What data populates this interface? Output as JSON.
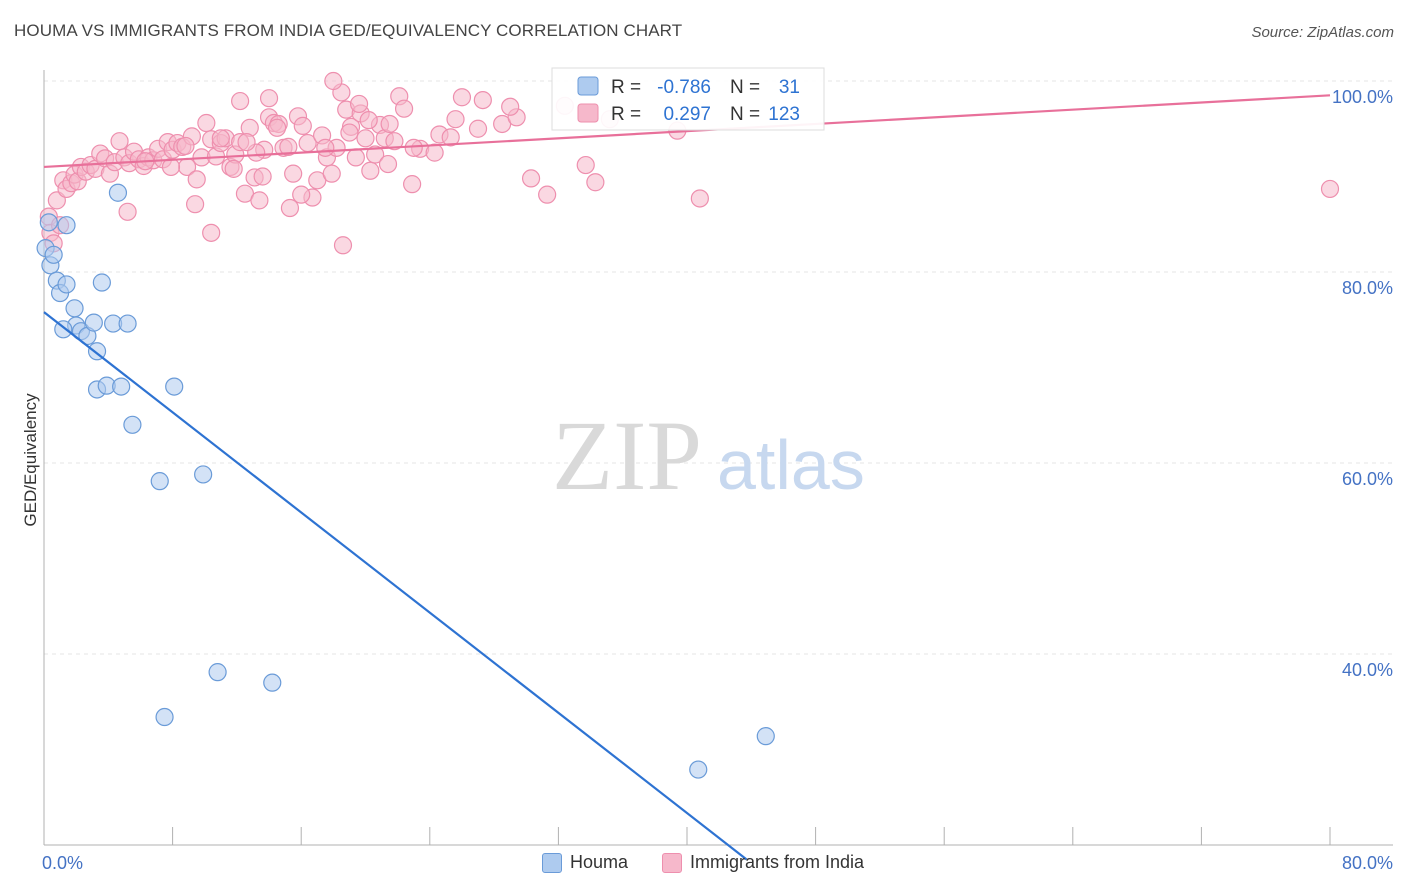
{
  "header": {
    "title": "HOUMA VS IMMIGRANTS FROM INDIA GED/EQUIVALENCY CORRELATION CHART",
    "source": "Source: ZipAtlas.com"
  },
  "watermark": {
    "zip": "ZIP",
    "atlas": "atlas"
  },
  "colors": {
    "houma_fill": "#aecbef",
    "houma_stroke": "#6a9bd8",
    "houma_line": "#2e73d2",
    "india_fill": "#f6b8cb",
    "india_stroke": "#ee8fae",
    "india_line": "#e8709a",
    "tick_text": "#4472c4",
    "grid": "#e4e4e4"
  },
  "stats": {
    "r_label": "R =",
    "n_label": "N =",
    "houma": {
      "r": "-0.786",
      "n": "31"
    },
    "india": {
      "r": "0.297",
      "n": "123"
    }
  },
  "chart_data": {
    "type": "scatter",
    "title": "HOUMA VS IMMIGRANTS FROM INDIA GED/EQUIVALENCY CORRELATION CHART",
    "xlabel": "",
    "ylabel": "GED/Equivalency",
    "xlim": [
      0,
      80
    ],
    "ylim": [
      18.5,
      102
    ],
    "x_tick_labels": [
      {
        "value": 0,
        "label": "0.0%"
      },
      {
        "value": 80,
        "label": "80.0%"
      }
    ],
    "y_tick_labels": [
      {
        "value": 100,
        "label": "100.0%"
      },
      {
        "value": 80,
        "label": "80.0%"
      },
      {
        "value": 60,
        "label": "60.0%"
      },
      {
        "value": 40,
        "label": "40.0%"
      }
    ],
    "y_gridlines": [
      100,
      80,
      60,
      40
    ],
    "legend_position": "top-center",
    "series": [
      {
        "name": "Houma",
        "trendline": {
          "x0": 0,
          "y0": 75.8,
          "x1": 43.7,
          "y1": 18.5
        },
        "points": [
          [
            0.1,
            82.5
          ],
          [
            0.4,
            80.7
          ],
          [
            0.6,
            81.8
          ],
          [
            0.8,
            79.1
          ],
          [
            1.0,
            77.8
          ],
          [
            1.4,
            78.7
          ],
          [
            1.4,
            84.9
          ],
          [
            1.9,
            76.2
          ],
          [
            2.0,
            74.4
          ],
          [
            1.2,
            74.0
          ],
          [
            2.3,
            73.8
          ],
          [
            2.7,
            73.3
          ],
          [
            3.1,
            74.7
          ],
          [
            3.6,
            78.9
          ],
          [
            4.3,
            74.6
          ],
          [
            5.2,
            74.6
          ],
          [
            4.6,
            88.3
          ],
          [
            3.3,
            71.7
          ],
          [
            3.3,
            67.7
          ],
          [
            3.9,
            68.1
          ],
          [
            4.8,
            68.0
          ],
          [
            8.1,
            68.0
          ],
          [
            5.5,
            64.0
          ],
          [
            7.2,
            58.1
          ],
          [
            9.9,
            58.8
          ],
          [
            10.8,
            38.1
          ],
          [
            14.2,
            37.0
          ],
          [
            7.5,
            33.4
          ],
          [
            40.7,
            27.9
          ],
          [
            44.9,
            31.4
          ],
          [
            0.3,
            85.2
          ]
        ]
      },
      {
        "name": "Immigrants from India",
        "trendline": {
          "x0": 0,
          "y0": 91.0,
          "x1": 80,
          "y1": 98.5
        },
        "points": [
          [
            0.3,
            85.8
          ],
          [
            0.4,
            84.1
          ],
          [
            0.6,
            83.0
          ],
          [
            0.8,
            87.5
          ],
          [
            1.0,
            84.9
          ],
          [
            1.2,
            89.6
          ],
          [
            1.4,
            88.7
          ],
          [
            1.7,
            89.3
          ],
          [
            1.9,
            90.2
          ],
          [
            2.1,
            89.5
          ],
          [
            2.3,
            91.0
          ],
          [
            2.6,
            90.5
          ],
          [
            2.9,
            91.2
          ],
          [
            3.2,
            90.8
          ],
          [
            3.5,
            92.4
          ],
          [
            3.8,
            91.9
          ],
          [
            4.1,
            90.3
          ],
          [
            4.4,
            91.5
          ],
          [
            4.7,
            93.7
          ],
          [
            5.0,
            92.0
          ],
          [
            5.3,
            91.4
          ],
          [
            5.6,
            92.6
          ],
          [
            5.9,
            91.8
          ],
          [
            6.2,
            91.1
          ],
          [
            6.5,
            92.0
          ],
          [
            6.8,
            91.7
          ],
          [
            7.1,
            92.9
          ],
          [
            7.4,
            91.8
          ],
          [
            7.7,
            93.6
          ],
          [
            8.0,
            92.8
          ],
          [
            8.3,
            93.5
          ],
          [
            8.6,
            93.1
          ],
          [
            8.9,
            91.0
          ],
          [
            9.2,
            94.2
          ],
          [
            9.5,
            89.7
          ],
          [
            9.8,
            92.0
          ],
          [
            10.1,
            95.6
          ],
          [
            10.4,
            93.9
          ],
          [
            10.7,
            92.1
          ],
          [
            11.0,
            93.5
          ],
          [
            11.3,
            94.0
          ],
          [
            11.6,
            91.0
          ],
          [
            11.9,
            92.3
          ],
          [
            12.2,
            97.9
          ],
          [
            12.5,
            88.2
          ],
          [
            12.8,
            95.1
          ],
          [
            13.1,
            89.9
          ],
          [
            13.4,
            87.5
          ],
          [
            13.7,
            92.8
          ],
          [
            14.0,
            96.2
          ],
          [
            14.3,
            95.6
          ],
          [
            14.6,
            95.5
          ],
          [
            14.9,
            93.0
          ],
          [
            15.2,
            93.1
          ],
          [
            15.5,
            90.3
          ],
          [
            15.8,
            96.3
          ],
          [
            16.1,
            95.3
          ],
          [
            16.4,
            93.5
          ],
          [
            16.7,
            87.8
          ],
          [
            17.0,
            89.6
          ],
          [
            17.3,
            94.3
          ],
          [
            17.6,
            92.0
          ],
          [
            17.9,
            90.3
          ],
          [
            18.2,
            93.0
          ],
          [
            18.5,
            98.8
          ],
          [
            18.8,
            97.0
          ],
          [
            19.1,
            95.2
          ],
          [
            19.4,
            92.0
          ],
          [
            19.7,
            96.6
          ],
          [
            20.0,
            94.0
          ],
          [
            20.3,
            90.6
          ],
          [
            20.6,
            92.3
          ],
          [
            20.9,
            95.4
          ],
          [
            21.2,
            94.0
          ],
          [
            21.5,
            95.5
          ],
          [
            21.8,
            93.7
          ],
          [
            22.1,
            98.4
          ],
          [
            22.4,
            97.1
          ],
          [
            18.0,
            100.0
          ],
          [
            18.6,
            82.8
          ],
          [
            8.8,
            93.2
          ],
          [
            9.4,
            87.1
          ],
          [
            10.4,
            84.1
          ],
          [
            13.6,
            90.0
          ],
          [
            14.0,
            98.2
          ],
          [
            16.0,
            88.1
          ],
          [
            17.5,
            93.0
          ],
          [
            19.6,
            97.6
          ],
          [
            23.4,
            92.9
          ],
          [
            24.6,
            94.4
          ],
          [
            25.6,
            96.0
          ],
          [
            26.0,
            98.3
          ],
          [
            27.3,
            98.0
          ],
          [
            28.5,
            95.5
          ],
          [
            29.4,
            96.2
          ],
          [
            30.3,
            89.8
          ],
          [
            31.3,
            88.1
          ],
          [
            33.7,
            91.2
          ],
          [
            34.3,
            89.4
          ],
          [
            35.2,
            96.0
          ],
          [
            39.4,
            94.8
          ],
          [
            40.8,
            87.7
          ],
          [
            80.0,
            88.7
          ],
          [
            6.3,
            91.6
          ],
          [
            7.9,
            91.0
          ],
          [
            5.2,
            86.3
          ],
          [
            12.2,
            93.6
          ],
          [
            11.0,
            94.0
          ],
          [
            15.3,
            86.7
          ],
          [
            13.2,
            92.5
          ],
          [
            21.4,
            91.3
          ],
          [
            24.3,
            92.5
          ],
          [
            25.3,
            94.1
          ],
          [
            27.0,
            95.0
          ],
          [
            23.0,
            93.0
          ],
          [
            32.4,
            97.4
          ],
          [
            29.0,
            97.3
          ],
          [
            20.2,
            95.9
          ],
          [
            19.0,
            94.6
          ],
          [
            11.8,
            90.8
          ],
          [
            12.6,
            93.6
          ],
          [
            14.5,
            95.1
          ],
          [
            22.9,
            89.2
          ]
        ]
      }
    ]
  },
  "legend": {
    "houma": "Houma",
    "india": "Immigrants from India"
  }
}
